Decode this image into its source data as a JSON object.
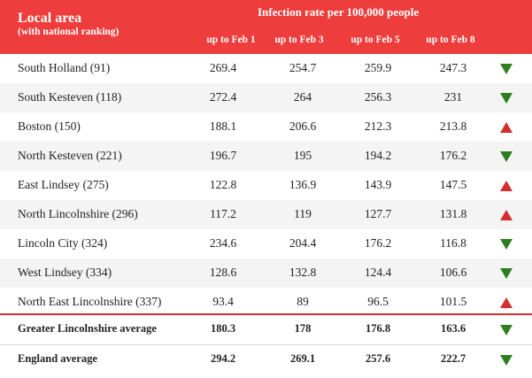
{
  "header": {
    "local_area": "Local area",
    "local_area_sub": "(with national ranking)",
    "rate_title": "Infection rate per 100,000 people",
    "columns": [
      "up to Feb 1",
      "up to Feb 3",
      "up to Feb 5",
      "up to Feb 8"
    ]
  },
  "rows": [
    {
      "area": "South Holland (91)",
      "values": [
        "269.4",
        "254.7",
        "259.9",
        "247.3"
      ],
      "trend": "down"
    },
    {
      "area": "South Kesteven (118)",
      "values": [
        "272.4",
        "264",
        "256.3",
        "231"
      ],
      "trend": "down"
    },
    {
      "area": "Boston (150)",
      "values": [
        "188.1",
        "206.6",
        "212.3",
        "213.8"
      ],
      "trend": "up"
    },
    {
      "area": "North Kesteven (221)",
      "values": [
        "196.7",
        "195",
        "194.2",
        "176.2"
      ],
      "trend": "down"
    },
    {
      "area": "East Lindsey (275)",
      "values": [
        "122.8",
        "136.9",
        "143.9",
        "147.5"
      ],
      "trend": "up"
    },
    {
      "area": "North Lincolnshire (296)",
      "values": [
        "117.2",
        "119",
        "127.7",
        "131.8"
      ],
      "trend": "up"
    },
    {
      "area": "Lincoln City (324)",
      "values": [
        "234.6",
        "204.4",
        "176.2",
        "116.8"
      ],
      "trend": "down"
    },
    {
      "area": "West Lindsey (334)",
      "values": [
        "128.6",
        "132.8",
        "124.4",
        "106.6"
      ],
      "trend": "down"
    },
    {
      "area": "North East Lincolnshire (337)",
      "values": [
        "93.4",
        "89",
        "96.5",
        "101.5"
      ],
      "trend": "up"
    }
  ],
  "summary": [
    {
      "area": "Greater Lincolnshire average",
      "values": [
        "180.3",
        "178",
        "176.8",
        "163.6"
      ],
      "trend": "down"
    },
    {
      "area": "England average",
      "values": [
        "294.2",
        "269.1",
        "257.6",
        "222.7"
      ],
      "trend": "down"
    }
  ],
  "colors": {
    "header_bg": "#ee3d3d",
    "arrow_up": "#d32f2f",
    "arrow_down": "#2e7d1e",
    "row_shade": "#f4f4f4"
  },
  "icons": {
    "up": "triangle-up-icon",
    "down": "triangle-down-icon"
  }
}
